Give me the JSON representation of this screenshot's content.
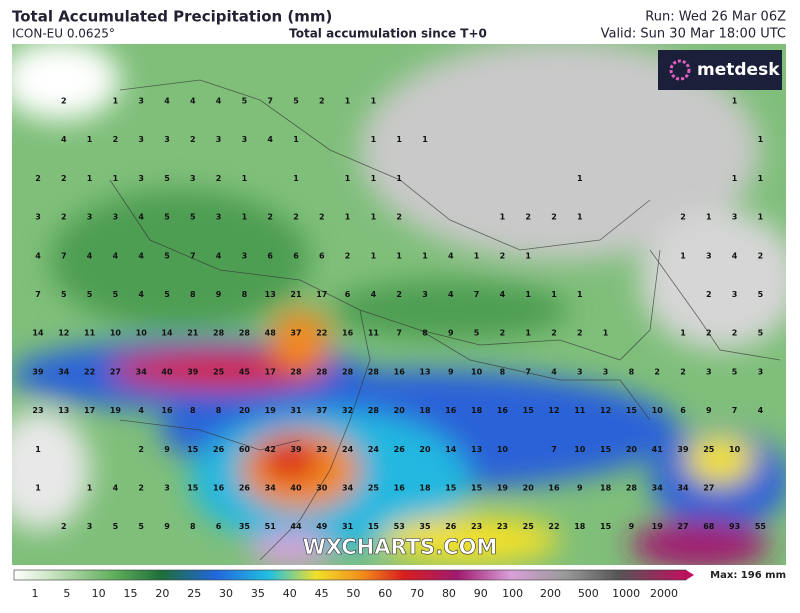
{
  "header": {
    "title": "Total Accumulated Precipitation (mm)",
    "model": "ICON-EU 0.0625°",
    "subtitle": "Total accumulation since T+0",
    "run": "Run: Wed 26 Mar 06Z",
    "valid": "Valid: Sun 30 Mar 18:00 UTC"
  },
  "logo": "metdesk",
  "watermark": "WXCHARTS.COM",
  "grid": {
    "rows": [
      [
        null,
        2,
        null,
        1,
        3,
        4,
        4,
        4,
        5,
        7,
        5,
        2,
        1,
        1,
        null,
        null,
        null,
        null,
        null,
        null,
        null,
        null,
        null,
        null,
        null,
        null,
        null,
        1,
        null
      ],
      [
        null,
        4,
        1,
        2,
        3,
        3,
        2,
        3,
        3,
        4,
        1,
        null,
        null,
        1,
        1,
        1,
        null,
        null,
        null,
        null,
        null,
        null,
        null,
        null,
        null,
        null,
        null,
        null,
        1
      ],
      [
        2,
        2,
        1,
        1,
        3,
        5,
        3,
        2,
        1,
        null,
        1,
        null,
        1,
        1,
        1,
        null,
        null,
        null,
        null,
        null,
        null,
        1,
        null,
        null,
        null,
        null,
        null,
        1,
        1
      ],
      [
        3,
        2,
        3,
        3,
        4,
        5,
        5,
        3,
        1,
        2,
        2,
        2,
        1,
        1,
        2,
        null,
        null,
        null,
        1,
        2,
        2,
        1,
        null,
        null,
        null,
        2,
        1,
        3,
        1
      ],
      [
        4,
        7,
        4,
        4,
        4,
        5,
        7,
        4,
        3,
        6,
        6,
        6,
        2,
        1,
        1,
        1,
        4,
        1,
        2,
        1,
        null,
        null,
        null,
        null,
        null,
        1,
        3,
        4,
        2
      ],
      [
        7,
        5,
        5,
        5,
        4,
        5,
        8,
        9,
        8,
        13,
        21,
        17,
        6,
        4,
        2,
        3,
        4,
        7,
        4,
        1,
        1,
        1,
        null,
        null,
        null,
        null,
        2,
        3,
        5
      ],
      [
        14,
        12,
        11,
        10,
        10,
        14,
        21,
        28,
        28,
        48,
        37,
        22,
        16,
        11,
        7,
        8,
        9,
        5,
        2,
        1,
        2,
        2,
        1,
        null,
        null,
        1,
        2,
        2,
        5
      ],
      [
        39,
        34,
        22,
        27,
        34,
        40,
        39,
        25,
        45,
        17,
        28,
        28,
        28,
        28,
        16,
        13,
        9,
        10,
        8,
        7,
        4,
        3,
        3,
        8,
        2,
        2,
        3,
        5,
        3
      ],
      [
        23,
        13,
        17,
        19,
        4,
        16,
        8,
        8,
        20,
        19,
        31,
        37,
        32,
        28,
        20,
        18,
        16,
        18,
        16,
        15,
        12,
        11,
        12,
        15,
        10,
        6,
        9,
        7,
        4
      ],
      [
        1,
        null,
        null,
        null,
        2,
        9,
        15,
        26,
        60,
        42,
        39,
        32,
        24,
        24,
        26,
        20,
        14,
        13,
        10,
        null,
        7,
        10,
        15,
        20,
        41,
        39,
        25,
        10,
        null
      ],
      [
        1,
        null,
        1,
        4,
        2,
        3,
        15,
        16,
        26,
        34,
        40,
        30,
        34,
        25,
        16,
        18,
        15,
        15,
        19,
        20,
        16,
        9,
        18,
        28,
        34,
        34,
        27,
        null,
        null
      ],
      [
        null,
        2,
        3,
        5,
        5,
        9,
        8,
        6,
        35,
        51,
        44,
        49,
        31,
        15,
        53,
        35,
        26,
        23,
        23,
        25,
        22,
        18,
        15,
        9,
        19,
        27,
        68,
        93,
        55
      ]
    ]
  },
  "colorbar": {
    "labels": [
      1,
      5,
      10,
      15,
      20,
      25,
      30,
      35,
      40,
      45,
      50,
      60,
      70,
      80,
      90,
      100,
      200,
      500,
      1000,
      2000
    ],
    "max": "Max: 196 mm"
  }
}
